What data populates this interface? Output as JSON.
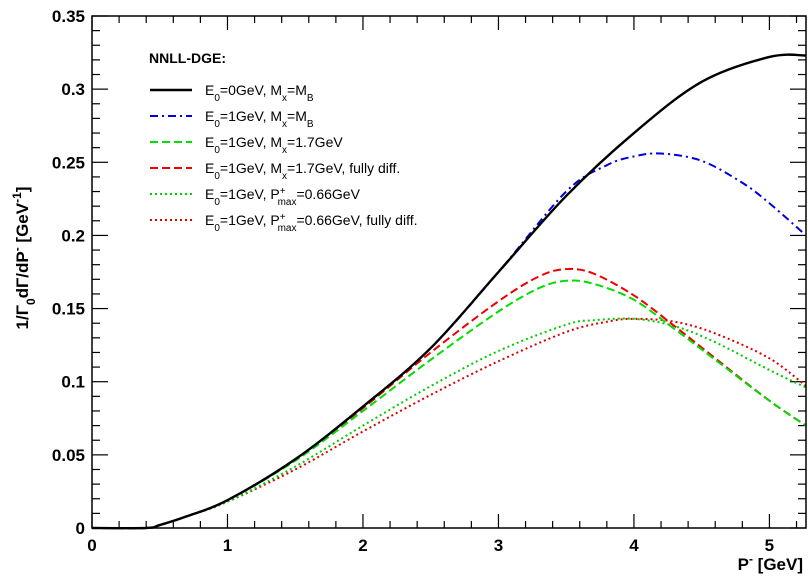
{
  "chart_data": {
    "type": "line",
    "legend_title": "NNLL-DGE:",
    "legend_placement": "top-left",
    "grid": false,
    "xlim": [
      0,
      5.27
    ],
    "ylim": [
      0,
      0.35
    ],
    "x_ticks": [
      0,
      1,
      2,
      3,
      4,
      5
    ],
    "y_ticks": [
      0,
      0.05,
      0.1,
      0.15,
      0.2,
      0.25,
      0.3,
      0.35
    ],
    "x_tick_labels": [
      "0",
      "1",
      "2",
      "3",
      "4",
      "5"
    ],
    "y_tick_labels": [
      "0",
      "0.05",
      "0.1",
      "0.15",
      "0.2",
      "0.25",
      "0.3",
      "0.35"
    ],
    "xlabel_parts": [
      "P",
      "-",
      " [GeV]"
    ],
    "ylabel_parts": [
      "1/Γ",
      "0",
      "dΓ/dP",
      "-",
      " [GeV",
      "-1",
      "]"
    ],
    "series": [
      {
        "legend_parts": [
          [
            "E",
            ""
          ],
          [
            "0",
            "sub"
          ],
          [
            "=0GeV, M",
            ""
          ],
          [
            "x",
            "sub"
          ],
          [
            "=M",
            ""
          ],
          [
            "B",
            "sub"
          ]
        ],
        "color": "#000000",
        "dash": "solid",
        "x": [
          0,
          0.4,
          0.5,
          0.7,
          1.0,
          1.5,
          2.0,
          2.5,
          3.0,
          3.5,
          4.0,
          4.5,
          5.0,
          5.27
        ],
        "y": [
          0,
          0,
          0.002,
          0.008,
          0.019,
          0.047,
          0.083,
          0.123,
          0.175,
          0.227,
          0.27,
          0.305,
          0.322,
          0.323
        ]
      },
      {
        "legend_parts": [
          [
            "E",
            ""
          ],
          [
            "0",
            "sub"
          ],
          [
            "=1GeV, M",
            ""
          ],
          [
            "x",
            "sub"
          ],
          [
            "=M",
            ""
          ],
          [
            "B",
            "sub"
          ]
        ],
        "color": "#0000dd",
        "dash": "dashdot",
        "x": [
          0,
          0.4,
          0.5,
          0.7,
          1.0,
          1.5,
          2.0,
          2.5,
          3.0,
          3.5,
          3.8,
          4.0,
          4.2,
          4.5,
          4.8,
          5.0,
          5.27
        ],
        "y": [
          0,
          0,
          0.002,
          0.008,
          0.019,
          0.047,
          0.083,
          0.123,
          0.175,
          0.23,
          0.248,
          0.254,
          0.256,
          0.251,
          0.236,
          0.222,
          0.2
        ]
      },
      {
        "legend_parts": [
          [
            "E",
            ""
          ],
          [
            "0",
            "sub"
          ],
          [
            "=1GeV, M",
            ""
          ],
          [
            "x",
            "sub"
          ],
          [
            "=1.7GeV",
            ""
          ]
        ],
        "color": "#00dd00",
        "dash": "dashed",
        "x": [
          0,
          0.4,
          0.5,
          0.7,
          1.0,
          1.5,
          2.0,
          2.5,
          3.0,
          3.3,
          3.5,
          3.7,
          4.0,
          4.3,
          4.6,
          5.0,
          5.27
        ],
        "y": [
          0,
          0,
          0.002,
          0.008,
          0.019,
          0.046,
          0.08,
          0.115,
          0.148,
          0.164,
          0.169,
          0.167,
          0.156,
          0.136,
          0.115,
          0.087,
          0.07
        ]
      },
      {
        "legend_parts": [
          [
            "E",
            ""
          ],
          [
            "0",
            "sub"
          ],
          [
            "=1GeV, M",
            ""
          ],
          [
            "x",
            "sub"
          ],
          [
            "=1.7GeV, fully diff.",
            ""
          ]
        ],
        "color": "#ee0000",
        "dash": "dashed",
        "x": [
          0,
          0.4,
          0.5,
          0.7,
          1.0,
          1.5,
          2.0,
          2.5,
          3.0,
          3.3,
          3.5,
          3.7,
          4.0,
          4.3,
          4.6,
          5.0,
          5.27
        ],
        "y": [
          0,
          0,
          0.002,
          0.008,
          0.019,
          0.047,
          0.082,
          0.12,
          0.155,
          0.172,
          0.177,
          0.174,
          0.159,
          0.138,
          0.116,
          0.087,
          0.07
        ]
      },
      {
        "legend_parts": [
          [
            "E",
            ""
          ],
          [
            "0",
            "sub"
          ],
          [
            "=1GeV, P",
            ""
          ],
          [
            "+",
            "supsub",
            "max"
          ],
          [
            "=0.66GeV",
            ""
          ]
        ],
        "color": "#00cc00",
        "dash": "dotted",
        "x": [
          0,
          0.4,
          0.5,
          0.7,
          1.0,
          1.5,
          2.0,
          2.5,
          3.0,
          3.5,
          3.7,
          4.0,
          4.3,
          4.6,
          5.0,
          5.27
        ],
        "y": [
          0,
          0,
          0.002,
          0.008,
          0.018,
          0.042,
          0.07,
          0.097,
          0.121,
          0.139,
          0.142,
          0.143,
          0.138,
          0.127,
          0.108,
          0.096
        ]
      },
      {
        "legend_parts": [
          [
            "E",
            ""
          ],
          [
            "0",
            "sub"
          ],
          [
            "=1GeV, P",
            ""
          ],
          [
            "+",
            "supsub",
            "max"
          ],
          [
            "=0.66GeV, fully diff.",
            ""
          ]
        ],
        "color": "#dd0000",
        "dash": "dotted",
        "x": [
          0,
          0.4,
          0.5,
          0.7,
          1.0,
          1.5,
          2.0,
          2.5,
          3.0,
          3.5,
          3.8,
          4.0,
          4.3,
          4.6,
          5.0,
          5.27
        ],
        "y": [
          0,
          0,
          0.002,
          0.008,
          0.018,
          0.04,
          0.066,
          0.091,
          0.114,
          0.134,
          0.141,
          0.143,
          0.141,
          0.133,
          0.116,
          0.097
        ]
      }
    ]
  }
}
